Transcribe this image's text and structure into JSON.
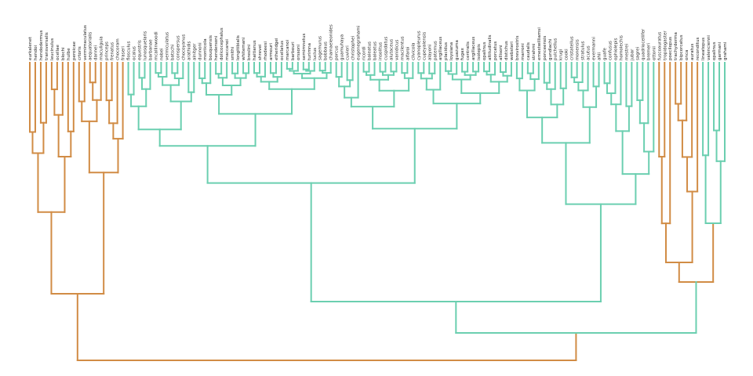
{
  "colors": {
    "orange": "#D18C45",
    "green": "#6BCFB0"
  },
  "leaves": [
    {
      "name": "eurkalenet",
      "clade": "orange"
    },
    {
      "name": "hendoi",
      "clade": "orange"
    },
    {
      "name": "hendodermus",
      "clade": "orange"
    },
    {
      "name": "transversalis",
      "clade": "orange"
    },
    {
      "name": "leucinulus",
      "clade": "orange"
    },
    {
      "name": "ocellae",
      "clade": "orange"
    },
    {
      "name": "blochi",
      "clade": "orange"
    },
    {
      "name": "hulbe",
      "clade": "orange"
    },
    {
      "name": "peroicae",
      "clade": "orange"
    },
    {
      "name": "crtoris",
      "clade": "orange"
    },
    {
      "name": "vermimaculatus",
      "clade": "orange"
    },
    {
      "name": "aequatorialis",
      "clade": "orange"
    },
    {
      "name": "dannei",
      "clade": "orange"
    },
    {
      "name": "maculiguia",
      "clade": "orange"
    },
    {
      "name": "princeps",
      "clade": "orange"
    },
    {
      "name": "frenatus",
      "clade": "orange"
    },
    {
      "name": "chocoram",
      "clade": "orange"
    },
    {
      "name": "fraseri",
      "clade": "orange"
    },
    {
      "name": "flosculus",
      "clade": "green"
    },
    {
      "name": "ocalus",
      "clade": "green"
    },
    {
      "name": "equestris",
      "clade": "green"
    },
    {
      "name": "lunosquelaris",
      "clade": "green"
    },
    {
      "name": "barbanae",
      "clade": "green"
    },
    {
      "name": "mcallinwoodi",
      "clade": "green"
    },
    {
      "name": "nobei",
      "clade": "green"
    },
    {
      "name": "vermiculatus",
      "clade": "green"
    },
    {
      "name": "batschi",
      "clade": "green"
    },
    {
      "name": "conspersus",
      "clade": "green"
    },
    {
      "name": "chocoyanus",
      "clade": "green"
    },
    {
      "name": "arathidis",
      "clade": "green"
    },
    {
      "name": "alnitger",
      "clade": "green"
    },
    {
      "name": "dunnoni",
      "clade": "green"
    },
    {
      "name": "monticola",
      "clade": "green"
    },
    {
      "name": "bouquensis",
      "clade": "green"
    },
    {
      "name": "hendersoni",
      "clade": "green"
    },
    {
      "name": "dolicocephalus",
      "clade": "green"
    },
    {
      "name": "maccanoi",
      "clade": "green"
    },
    {
      "name": "smithi",
      "clade": "green"
    },
    {
      "name": "longitibialis",
      "clade": "green"
    },
    {
      "name": "whitemani",
      "clade": "green"
    },
    {
      "name": "breslini",
      "clade": "green"
    },
    {
      "name": "haitianus",
      "clade": "green"
    },
    {
      "name": "shrevei",
      "clade": "green"
    },
    {
      "name": "rhodeesi",
      "clade": "green"
    },
    {
      "name": "armouri",
      "clade": "green"
    },
    {
      "name": "etheridgei",
      "clade": "green"
    },
    {
      "name": "ocellatus",
      "clade": "green"
    },
    {
      "name": "marcanoi",
      "clade": "green"
    },
    {
      "name": "barbouri",
      "clade": "green"
    },
    {
      "name": "orssoni",
      "clade": "green"
    },
    {
      "name": "semimnetus",
      "clade": "green"
    },
    {
      "name": "turimna",
      "clade": "green"
    },
    {
      "name": "luclus",
      "clade": "green"
    },
    {
      "name": "sagemurus",
      "clade": "green"
    },
    {
      "name": "bobbaus",
      "clade": "green"
    },
    {
      "name": "chamaeleonides",
      "clade": "green"
    },
    {
      "name": "porcus",
      "clade": "green"
    },
    {
      "name": "guamuhaya",
      "clade": "green"
    },
    {
      "name": "cuvieri",
      "clade": "green"
    },
    {
      "name": "christophei",
      "clade": "green"
    },
    {
      "name": "eugenegrahami",
      "clade": "green"
    },
    {
      "name": "ricordi",
      "clade": "green"
    },
    {
      "name": "baleatus",
      "clade": "green"
    },
    {
      "name": "baleatus",
      "clade": "green"
    },
    {
      "name": "insolitus",
      "clade": "green"
    },
    {
      "name": "cuspidatus",
      "clade": "green"
    },
    {
      "name": "alutaceus",
      "clade": "green"
    },
    {
      "name": "vanidicus",
      "clade": "green"
    },
    {
      "name": "macilentus",
      "clade": "green"
    },
    {
      "name": "alfaroi",
      "clade": "green"
    },
    {
      "name": "clivicola",
      "clade": "green"
    },
    {
      "name": "cyanopleurus",
      "clade": "green"
    },
    {
      "name": "cupeyalensis",
      "clade": "green"
    },
    {
      "name": "alayoni",
      "clade": "green"
    },
    {
      "name": "paternus",
      "clade": "green"
    },
    {
      "name": "argillaceus",
      "clade": "green"
    },
    {
      "name": "placidus",
      "clade": "green"
    },
    {
      "name": "loysiana",
      "clade": "green"
    },
    {
      "name": "guazuma",
      "clade": "green"
    },
    {
      "name": "fugax",
      "clade": "green"
    },
    {
      "name": "centralis",
      "clade": "green"
    },
    {
      "name": "argillaceus",
      "clade": "green"
    },
    {
      "name": "isolepis",
      "clade": "green"
    },
    {
      "name": "opalinus",
      "clade": "green"
    },
    {
      "name": "altitudinalis",
      "clade": "green"
    },
    {
      "name": "porcatus",
      "clade": "green"
    },
    {
      "name": "allisoni",
      "clade": "green"
    },
    {
      "name": "distichus",
      "clade": "green"
    },
    {
      "name": "websteri",
      "clade": "green"
    },
    {
      "name": "brevirostris",
      "clade": "green"
    },
    {
      "name": "marroni",
      "clade": "green"
    },
    {
      "name": "caudalis",
      "clade": "green"
    },
    {
      "name": "strahmi",
      "clade": "green"
    },
    {
      "name": "ernestwilliamsi",
      "clade": "green"
    },
    {
      "name": "ponceensis",
      "clade": "green"
    },
    {
      "name": "gundlachi",
      "clade": "green"
    },
    {
      "name": "pulchellus",
      "clade": "green"
    },
    {
      "name": "krugi",
      "clade": "green"
    },
    {
      "name": "cooki",
      "clade": "green"
    },
    {
      "name": "cristatellus",
      "clade": "green"
    },
    {
      "name": "monensis",
      "clade": "green"
    },
    {
      "name": "stratulus",
      "clade": "green"
    },
    {
      "name": "acutus",
      "clade": "green"
    },
    {
      "name": "evermanni",
      "clade": "green"
    },
    {
      "name": "ahli",
      "clade": "green"
    },
    {
      "name": "guafe",
      "clade": "green"
    },
    {
      "name": "confusus",
      "clade": "green"
    },
    {
      "name": "ophiolepis",
      "clade": "green"
    },
    {
      "name": "homolechis",
      "clade": "green"
    },
    {
      "name": "mestrei",
      "clade": "green"
    },
    {
      "name": "jubar",
      "clade": "green"
    },
    {
      "name": "sagrei",
      "clade": "green"
    },
    {
      "name": "quadriocellifer",
      "clade": "green"
    },
    {
      "name": "bremeri",
      "clade": "green"
    },
    {
      "name": "ottonii",
      "clade": "green"
    },
    {
      "name": "fuscoauratus",
      "clade": "orange"
    },
    {
      "name": "tropidogaster",
      "clade": "orange"
    },
    {
      "name": "poecilopus",
      "clade": "orange"
    },
    {
      "name": "trachyderma",
      "clade": "orange"
    },
    {
      "name": "bipcorcatus",
      "clade": "orange"
    },
    {
      "name": "onca",
      "clade": "orange"
    },
    {
      "name": "auratus",
      "clade": "orange"
    },
    {
      "name": "reconditus",
      "clade": "orange"
    },
    {
      "name": "lineatopus",
      "clade": "green"
    },
    {
      "name": "valencienni",
      "clade": "green"
    },
    {
      "name": "opalinus",
      "clade": "green"
    },
    {
      "name": "garmani",
      "clade": "green"
    },
    {
      "name": "grahami",
      "clade": "green"
    }
  ]
}
